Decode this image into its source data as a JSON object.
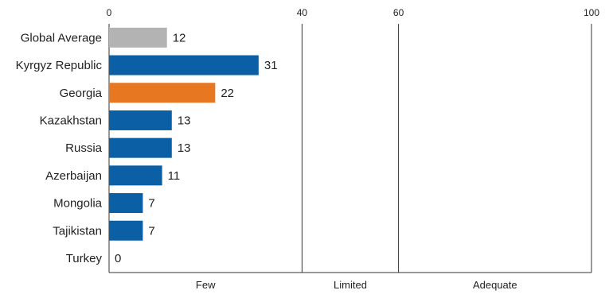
{
  "chart_data": {
    "type": "bar",
    "orientation": "horizontal",
    "categories": [
      "Global Average",
      "Kyrgyz Republic",
      "Georgia",
      "Kazakhstan",
      "Russia",
      "Azerbaijan",
      "Mongolia",
      "Tajikistan",
      "Turkey"
    ],
    "values": [
      12,
      31,
      22,
      13,
      13,
      11,
      7,
      7,
      0
    ],
    "bar_colors": [
      "#b3b3b3",
      "#0a5fa5",
      "#e87722",
      "#0a5fa5",
      "#0a5fa5",
      "#0a5fa5",
      "#0a5fa5",
      "#0a5fa5",
      "#0a5fa5"
    ],
    "xlim": [
      0,
      100
    ],
    "x_ticks": [
      "0",
      "40",
      "60",
      "100"
    ],
    "x_tick_values": [
      0,
      40,
      60,
      100
    ],
    "zones": [
      {
        "label": "Few",
        "from": 0,
        "to": 40
      },
      {
        "label": "Limited",
        "from": 40,
        "to": 60
      },
      {
        "label": "Adequate",
        "from": 60,
        "to": 100
      }
    ],
    "grid": "vertical lines at zone boundaries",
    "title": "",
    "xlabel": "",
    "ylabel": ""
  }
}
